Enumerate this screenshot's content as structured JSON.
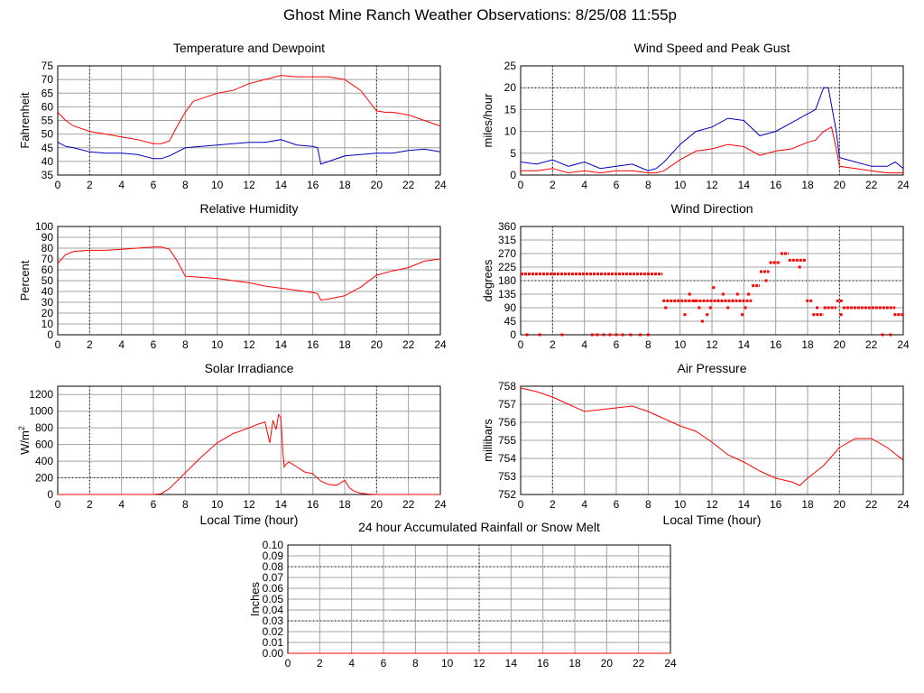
{
  "title": "Ghost Mine Ranch Weather Observations: 8/25/08 11:55p",
  "colors": {
    "red": "#ff0000",
    "blue": "#0000c0",
    "grid": "#a0a0a0",
    "dashed": "#000000"
  },
  "x_axis": {
    "ticks": [
      "0",
      "2",
      "4",
      "6",
      "8",
      "10",
      "12",
      "14",
      "16",
      "18",
      "20",
      "22",
      "24"
    ],
    "label": "Local Time (hour)",
    "range": [
      0,
      24
    ]
  },
  "chart_data": [
    {
      "id": "temp",
      "type": "line",
      "title": "Temperature and Dewpoint",
      "ylabel": "Fahrenheit",
      "ylim": [
        35,
        75
      ],
      "yticks": [
        "75",
        "70",
        "65",
        "60",
        "55",
        "50",
        "45",
        "40",
        "35"
      ],
      "series": [
        {
          "color": "#ff0000",
          "x": [
            0,
            0.5,
            1,
            2,
            3,
            4,
            5,
            6,
            6.5,
            7,
            7.5,
            8,
            8.5,
            9,
            10,
            11,
            12,
            13,
            14,
            15,
            16,
            17,
            18,
            19,
            20,
            20.5,
            21,
            22,
            23,
            24
          ],
          "y": [
            58,
            55,
            53,
            51,
            50,
            49,
            48,
            46.5,
            46.5,
            47.5,
            53,
            58,
            62,
            63,
            65,
            66,
            68.5,
            70,
            71.5,
            71,
            71,
            71,
            70,
            66,
            58.5,
            58,
            58,
            57,
            55,
            53
          ]
        },
        {
          "color": "#0000c0",
          "x": [
            0,
            0.5,
            1,
            2,
            3,
            4,
            5,
            6,
            6.5,
            7,
            8,
            9,
            10,
            11,
            12,
            13,
            14,
            15,
            16,
            16.3,
            16.5,
            17,
            18,
            19,
            20,
            21,
            22,
            23,
            24
          ],
          "y": [
            47,
            45.5,
            45,
            43.5,
            43,
            43,
            42.5,
            41,
            41,
            42,
            45,
            45.5,
            46,
            46.5,
            47,
            47,
            48,
            46,
            45.5,
            45,
            39,
            40,
            42,
            42.5,
            43,
            43,
            44,
            44.5,
            43.5
          ]
        }
      ]
    },
    {
      "id": "wind",
      "type": "line",
      "title": "Wind Speed and Peak Gust",
      "ylabel": "miles/hour",
      "ylim": [
        0,
        25
      ],
      "yticks": [
        "25",
        "20",
        "15",
        "10",
        "5",
        "0"
      ],
      "series": [
        {
          "color": "#0000c0",
          "x": [
            0,
            1,
            2,
            3,
            4,
            5,
            6,
            7,
            8,
            8.5,
            9,
            10,
            11,
            12,
            13,
            14,
            15,
            16,
            17,
            18,
            18.5,
            19,
            19.3,
            19.5,
            19.8,
            20,
            21,
            22,
            23,
            23.5,
            24
          ],
          "y": [
            3,
            2.5,
            3.5,
            2,
            3,
            1.5,
            2,
            2.5,
            1,
            1.5,
            3,
            7,
            10,
            11,
            13,
            12.5,
            9,
            10,
            12,
            14,
            15,
            20,
            20,
            16,
            10,
            4,
            3,
            2,
            2,
            3,
            1.5
          ]
        },
        {
          "color": "#ff0000",
          "x": [
            0,
            1,
            2,
            3,
            4,
            5,
            6,
            7,
            8,
            8.5,
            9,
            10,
            11,
            12,
            13,
            14,
            15,
            16,
            17,
            18,
            18.5,
            19,
            19.5,
            19.8,
            20,
            21,
            22,
            23,
            24
          ],
          "y": [
            1,
            1,
            1.5,
            0.5,
            1,
            0.5,
            1,
            1,
            0.5,
            0.5,
            1,
            3.5,
            5.5,
            6,
            7,
            6.5,
            4.5,
            5.5,
            6,
            7.5,
            8,
            10,
            11,
            6,
            2,
            1.5,
            1,
            0.5,
            0.5
          ]
        }
      ]
    },
    {
      "id": "humidity",
      "type": "line",
      "title": "Relative Humidity",
      "ylabel": "Percent",
      "ylim": [
        0,
        100
      ],
      "yticks": [
        "100",
        "90",
        "80",
        "70",
        "60",
        "50",
        "40",
        "30",
        "20",
        "10",
        "0"
      ],
      "series": [
        {
          "color": "#ff0000",
          "x": [
            0,
            0.5,
            1,
            2,
            3,
            4,
            5,
            6,
            6.5,
            7,
            7.5,
            8,
            9,
            10,
            11,
            12,
            13,
            14,
            15,
            16,
            16.3,
            16.5,
            17,
            18,
            19,
            20,
            21,
            22,
            23,
            24
          ],
          "y": [
            66,
            74,
            77,
            78,
            78,
            79,
            80,
            81,
            81,
            79,
            68,
            54,
            53,
            52,
            50,
            48,
            45,
            43,
            41,
            39,
            38,
            32,
            33,
            36,
            44,
            55,
            59,
            62,
            68,
            70
          ]
        }
      ]
    },
    {
      "id": "direction",
      "type": "scatter",
      "title": "Wind Direction",
      "ylabel": "degrees",
      "ylim": [
        0,
        360
      ],
      "yticks": [
        "360",
        "315",
        "270",
        "225",
        "180",
        "135",
        "90",
        "45",
        "0"
      ],
      "series": [
        {
          "color": "#ff0000",
          "segments": [
            [
              0,
              8.9,
              202
            ],
            [
              8.9,
              10.5,
              113
            ],
            [
              10.5,
              14.5,
              113
            ],
            [
              14.5,
              15.0,
              163
            ],
            [
              15.0,
              15.6,
              210
            ],
            [
              15.6,
              16.3,
              240
            ],
            [
              16.3,
              16.8,
              270
            ],
            [
              16.8,
              17.9,
              248
            ],
            [
              17.9,
              18.3,
              113
            ],
            [
              18.3,
              19.0,
              67
            ],
            [
              19.0,
              19.8,
              90
            ],
            [
              19.8,
              20.2,
              113
            ],
            [
              20.2,
              23.5,
              90
            ],
            [
              23.4,
              24,
              67
            ]
          ],
          "points": [
            [
              0.4,
              0
            ],
            [
              1.2,
              0
            ],
            [
              2.6,
              0
            ],
            [
              4.5,
              0
            ],
            [
              4.8,
              0
            ],
            [
              5.2,
              0
            ],
            [
              5.6,
              0
            ],
            [
              6.0,
              0
            ],
            [
              6.4,
              0
            ],
            [
              6.9,
              0
            ],
            [
              7.5,
              0
            ],
            [
              8.0,
              0
            ],
            [
              9.1,
              90
            ],
            [
              10.3,
              67
            ],
            [
              10.6,
              135
            ],
            [
              10.9,
              113
            ],
            [
              11.2,
              90
            ],
            [
              11.4,
              45
            ],
            [
              11.7,
              67
            ],
            [
              11.9,
              90
            ],
            [
              12.1,
              157
            ],
            [
              12.4,
              113
            ],
            [
              12.7,
              135
            ],
            [
              13.0,
              90
            ],
            [
              13.3,
              113
            ],
            [
              13.6,
              135
            ],
            [
              13.9,
              67
            ],
            [
              14.1,
              90
            ],
            [
              14.3,
              135
            ],
            [
              15.4,
              180
            ],
            [
              17.5,
              225
            ],
            [
              18.6,
              90
            ],
            [
              20.1,
              67
            ],
            [
              22.7,
              0
            ],
            [
              23.2,
              0
            ]
          ]
        }
      ]
    },
    {
      "id": "solar",
      "type": "line",
      "title": "Solar Irradiance",
      "ylabel": "W/m",
      "ylabel_sup": "2",
      "ylim": [
        0,
        1300
      ],
      "yticks": [
        "1200",
        "1000",
        "800",
        "600",
        "400",
        "200",
        "0"
      ],
      "series": [
        {
          "color": "#ff0000",
          "x": [
            0,
            6,
            6.5,
            7,
            8,
            9,
            10,
            11,
            12,
            12.5,
            13,
            13.3,
            13.5,
            13.7,
            13.85,
            14,
            14.1,
            14.2,
            14.3,
            14.5,
            15,
            15.5,
            16,
            16.5,
            17,
            17.5,
            18,
            18.3,
            18.6,
            19,
            19.5,
            20,
            24
          ],
          "y": [
            0,
            0,
            10,
            70,
            260,
            450,
            620,
            730,
            800,
            840,
            870,
            620,
            890,
            780,
            960,
            920,
            580,
            330,
            360,
            390,
            330,
            270,
            250,
            160,
            120,
            110,
            170,
            80,
            40,
            15,
            5,
            0,
            0
          ]
        }
      ]
    },
    {
      "id": "pressure",
      "type": "line",
      "title": "Air Pressure",
      "ylabel": "millibars",
      "ylim": [
        752,
        758
      ],
      "yticks": [
        "758",
        "757",
        "756",
        "755",
        "754",
        "753",
        "752"
      ],
      "series": [
        {
          "color": "#ff0000",
          "x": [
            0,
            1,
            2,
            3,
            4,
            5,
            6,
            7,
            8,
            9,
            10,
            11,
            12,
            13,
            14,
            15,
            16,
            17,
            17.5,
            18,
            19,
            20,
            21,
            22,
            23,
            24
          ],
          "y": [
            757.9,
            757.7,
            757.4,
            757.0,
            756.6,
            756.7,
            756.8,
            756.9,
            756.6,
            756.2,
            755.8,
            755.5,
            754.9,
            754.2,
            753.8,
            753.3,
            752.9,
            752.7,
            752.5,
            752.9,
            753.6,
            754.6,
            755.1,
            755.1,
            754.6,
            753.9
          ]
        }
      ]
    },
    {
      "id": "rain",
      "type": "line",
      "title": "24 hour Accumulated Rainfall or Snow Melt",
      "ylabel": "Inches",
      "ylim": [
        0,
        0.1
      ],
      "yticks": [
        "0.10",
        "0.09",
        "0.08",
        "0.07",
        "0.06",
        "0.05",
        "0.04",
        "0.03",
        "0.02",
        "0.01",
        "0.00"
      ],
      "series": [
        {
          "color": "#ff0000",
          "x": [
            0,
            24
          ],
          "y": [
            0,
            0
          ]
        }
      ]
    }
  ]
}
